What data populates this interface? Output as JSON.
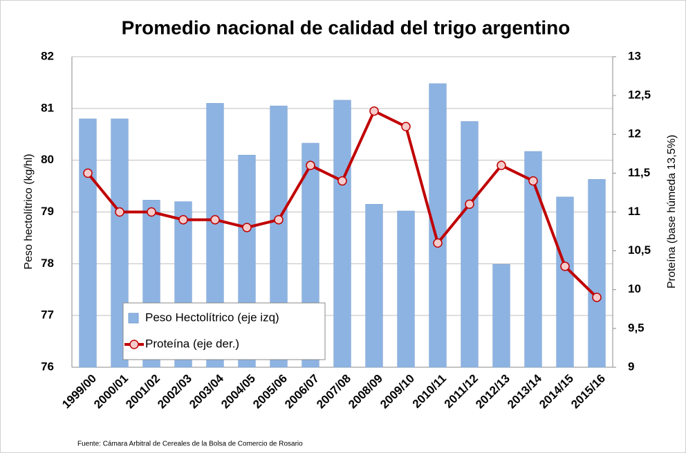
{
  "chart_data": {
    "type": "bar",
    "title": "Promedio nacional de calidad del trigo argentino",
    "y_label": "Peso hectolítrico (kg/hl)",
    "y2_label": "Proteína (base húmeda 13,5%)",
    "source": "Fuente: Cámara Arbitral de Cereales de la Bolsa de Comercio de Rosario",
    "categories": [
      "1999/00",
      "2000/01",
      "2001/02",
      "2002/03",
      "2003/04",
      "2004/05",
      "2005/06",
      "2006/07",
      "2007/08",
      "2008/09",
      "2009/10",
      "2010/11",
      "2011/12",
      "2012/13",
      "2013/14",
      "2014/15",
      "2015/16"
    ],
    "series": [
      {
        "name": "Peso Hectolítrico (eje izq)",
        "type": "bar",
        "color": "#8db3e2",
        "values": [
          80.8,
          80.8,
          79.23,
          79.2,
          81.1,
          80.1,
          81.05,
          80.33,
          81.16,
          79.15,
          79.02,
          81.48,
          80.75,
          77.99,
          80.17,
          79.29,
          79.63
        ]
      },
      {
        "name": "Proteína (eje der.)",
        "type": "line",
        "axis": "y2",
        "color": "#c00000",
        "values": [
          11.5,
          11.0,
          11.0,
          10.9,
          10.9,
          10.8,
          10.9,
          11.6,
          11.4,
          12.3,
          12.1,
          10.6,
          11.1,
          11.6,
          11.4,
          10.3,
          9.9
        ]
      }
    ],
    "ylim": [
      76,
      82
    ],
    "yticks": [
      76,
      77,
      78,
      79,
      80,
      81,
      82
    ],
    "y2lim": [
      9,
      13
    ],
    "y2ticks": [
      9,
      {
        "value": 9.5,
        "label": "9,5"
      },
      10,
      {
        "value": 10.5,
        "label": "10,5"
      },
      11,
      {
        "value": 11.5,
        "label": "11,5"
      },
      12,
      {
        "value": 12.5,
        "label": "12,5"
      },
      13
    ],
    "grid": true,
    "legend": "lower left"
  }
}
